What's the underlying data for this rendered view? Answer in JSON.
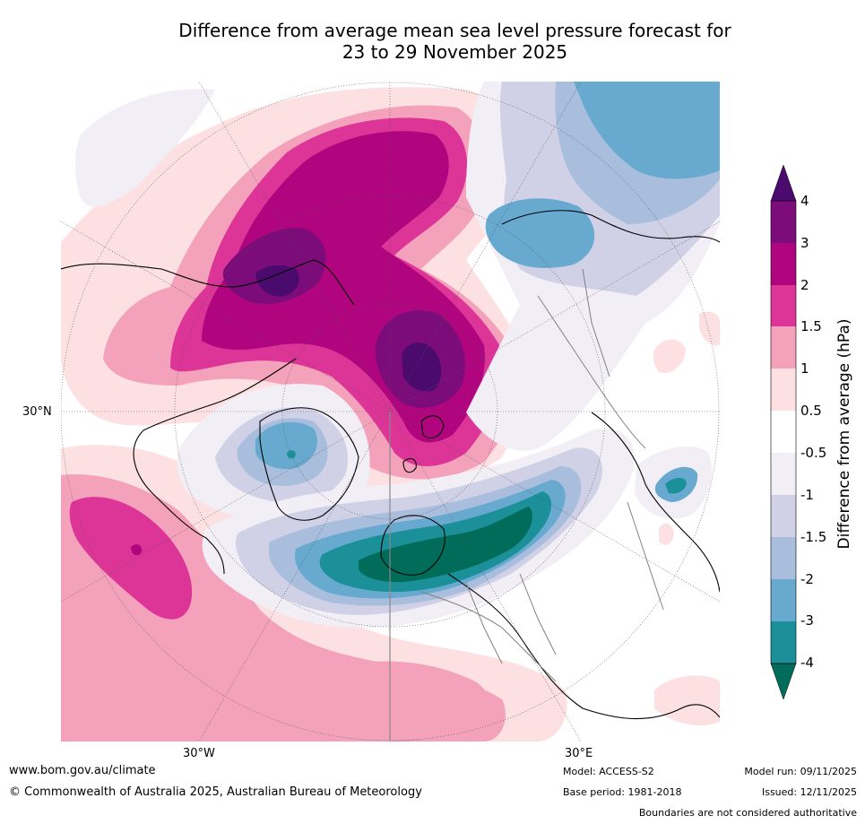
{
  "title": {
    "line1": "Difference from average mean sea level pressure forecast for",
    "line2": "23 to 29 November 2025"
  },
  "map": {
    "projection": "north-polar-stereographic",
    "axis_labels": {
      "left": "30°N",
      "bottom_left": "30°W",
      "bottom_right": "30°E"
    }
  },
  "colorbar": {
    "title": "Difference from average (hPa)",
    "ticks": [
      "4",
      "3",
      "2",
      "1.5",
      "1",
      "0.5",
      "-0.5",
      "-1",
      "-1.5",
      "-2",
      "-3",
      "-4"
    ],
    "colors": {
      "gt4": "#4b0a6e",
      "3to4": "#7b0c7a",
      "2to3": "#b0057e",
      "1.5to2": "#dd3597",
      "1to1.5": "#f4a2bb",
      "0.5to1": "#fde0e1",
      "-0.5to0.5": "#ffffff",
      "-1to-0.5": "#f1eef5",
      "-1.5to-1": "#d0d1e6",
      "-2to-1.5": "#a8bedc",
      "-3to-2": "#67a9cf",
      "-4to-3": "#1c9099",
      "lt-4": "#016c59"
    }
  },
  "footer": {
    "website": "www.bom.gov.au/climate",
    "copyright": "© Commonwealth of Australia 2025, Australian Bureau of Meteorology",
    "model": "Model: ACCESS-S2",
    "base_period": "Base period: 1981-2018",
    "model_run": "Model run: 09/11/2025",
    "issued": "Issued: 12/11/2025",
    "disclaimer": "Boundaries are not considered authoritative"
  }
}
